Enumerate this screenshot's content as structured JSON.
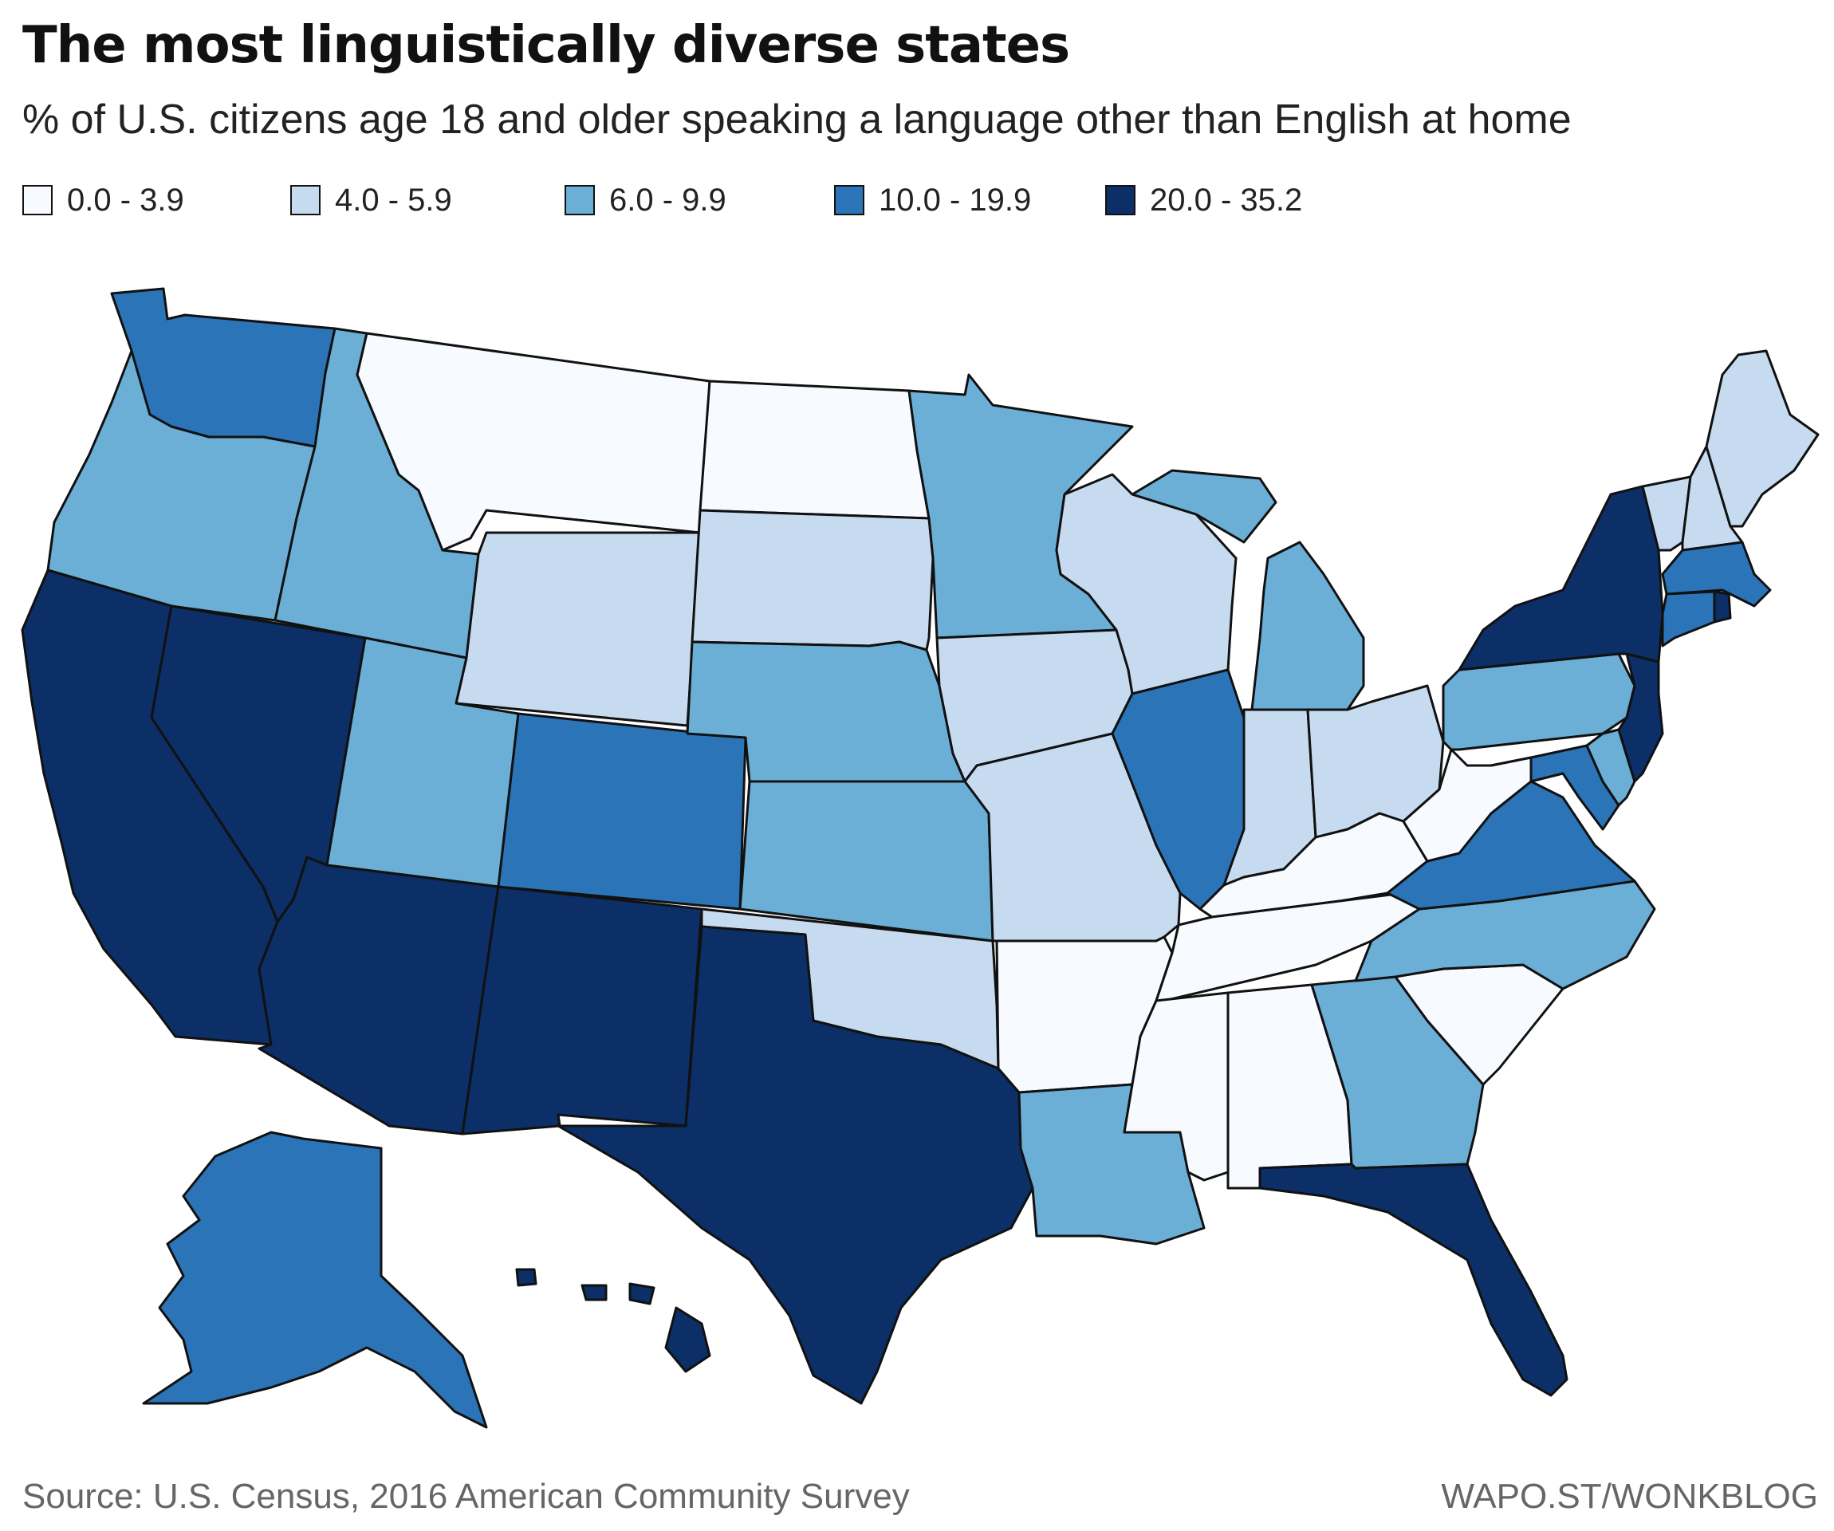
{
  "title": "The most linguistically diverse states",
  "subtitle": "% of U.S. citizens age 18 and older speaking a language other than English at home",
  "legend": [
    {
      "label": "0.0 - 3.9",
      "color": "#f7fbff"
    },
    {
      "label": "4.0 - 5.9",
      "color": "#c6dbef"
    },
    {
      "label": "6.0 - 9.9",
      "color": "#6baed6"
    },
    {
      "label": "10.0 - 19.9",
      "color": "#2b74b8"
    },
    {
      "label": "20.0 - 35.2",
      "color": "#0b2f66"
    }
  ],
  "states_by_class": {
    "0.0 - 3.9": [
      "Montana",
      "North Dakota",
      "Arkansas",
      "Tennessee",
      "Kentucky",
      "West Virginia",
      "Mississippi",
      "Alabama",
      "South Carolina"
    ],
    "4.0 - 5.9": [
      "Wyoming",
      "South Dakota",
      "Iowa",
      "Missouri",
      "Wisconsin",
      "Indiana",
      "Ohio",
      "Oklahoma",
      "Vermont",
      "New Hampshire",
      "Maine"
    ],
    "6.0 - 9.9": [
      "Oregon",
      "Idaho",
      "Utah",
      "Nebraska",
      "Kansas",
      "Minnesota",
      "Michigan",
      "Pennsylvania",
      "Delaware",
      "North Carolina",
      "Georgia",
      "Louisiana"
    ],
    "10.0 - 19.9": [
      "Washington",
      "Colorado",
      "Illinois",
      "Virginia",
      "Maryland",
      "Connecticut",
      "Massachusetts",
      "Alaska"
    ],
    "20.0 - 35.2": [
      "California",
      "Nevada",
      "Arizona",
      "New Mexico",
      "Texas",
      "Florida",
      "New York",
      "New Jersey",
      "Rhode Island",
      "Hawaii"
    ]
  },
  "footer": {
    "source": "Source: U.S. Census, 2016 American Community Survey",
    "credit": "WAPO.ST/WONKBLOG"
  }
}
